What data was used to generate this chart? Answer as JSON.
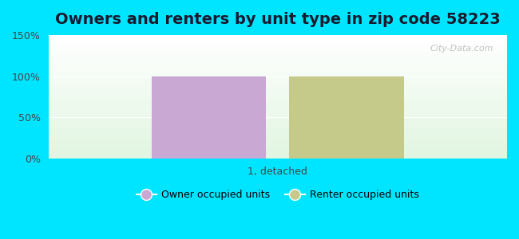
{
  "title": "Owners and renters by unit type in zip code 58223",
  "categories": [
    "1, detached"
  ],
  "owner_values": [
    100
  ],
  "renter_values": [
    100
  ],
  "owner_color": "#c9a8d4",
  "renter_color": "#c5c98a",
  "owner_label": "Owner occupied units",
  "renter_label": "Renter occupied units",
  "ylim": [
    0,
    150
  ],
  "yticks": [
    0,
    50,
    100,
    150
  ],
  "ytick_labels": [
    "0%",
    "50%",
    "100%",
    "150%"
  ],
  "figure_bg": "#00e5ff",
  "watermark": "City-Data.com",
  "bar_width": 0.3,
  "title_fontsize": 14
}
